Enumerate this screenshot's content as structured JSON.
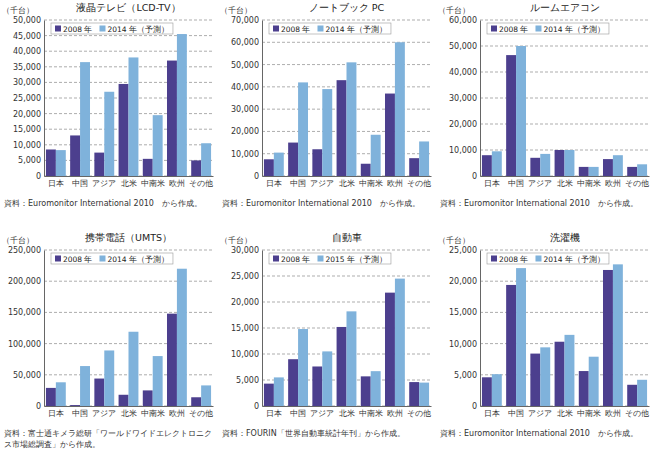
{
  "chart_data": [
    {
      "type": "bar",
      "title": "液晶テレビ（LCD-TV）",
      "ylabel": "（千台）",
      "annotation": [
        "資料：Euromonitor International 2010　から作成。"
      ],
      "categories": [
        "日本",
        "中国",
        "アジア",
        "北米",
        "中南米",
        "欧州",
        "その他"
      ],
      "series": [
        {
          "name": "2008 年",
          "color": "#4c3f8e",
          "values": [
            8500,
            13000,
            7500,
            29500,
            5500,
            37000,
            5000
          ]
        },
        {
          "name": "2014 年（予測）",
          "color": "#7fb2db",
          "values": [
            8300,
            36500,
            27000,
            38000,
            19500,
            45500,
            10500
          ]
        }
      ],
      "ylim": [
        0,
        50000
      ],
      "yticks": [
        0,
        {
          "value": 5000,
          "label": "5,000"
        },
        {
          "value": 10000,
          "label": "10,000"
        },
        {
          "value": 15000,
          "label": "15,000"
        },
        {
          "value": 20000,
          "label": "20,000"
        },
        {
          "value": 25000,
          "label": "25,000"
        },
        {
          "value": 30000,
          "label": "30,000"
        },
        {
          "value": 35000,
          "label": "35,000"
        },
        {
          "value": 40000,
          "label": "40,000"
        },
        {
          "value": 45000,
          "label": "45,000"
        },
        {
          "value": 50000,
          "label": "50,000"
        }
      ],
      "grid": true,
      "legend": "upper left"
    },
    {
      "type": "bar",
      "title": "ノートブック PC",
      "ylabel": "（千台）",
      "annotation": [
        "資料：Euromonitor International 2010　から作成。"
      ],
      "categories": [
        "日本",
        "中国",
        "アジア",
        "北米",
        "中南米",
        "欧州",
        "その他"
      ],
      "series": [
        {
          "name": "2008 年",
          "color": "#4c3f8e",
          "values": [
            7500,
            15000,
            12000,
            43000,
            5500,
            37000,
            8000
          ]
        },
        {
          "name": "2014 年（予測）",
          "color": "#7fb2db",
          "values": [
            10500,
            42000,
            39000,
            51000,
            18500,
            60000,
            15500
          ]
        }
      ],
      "ylim": [
        0,
        70000
      ],
      "yticks": [
        0,
        {
          "value": 10000,
          "label": "10,000"
        },
        {
          "value": 20000,
          "label": "20,000"
        },
        {
          "value": 30000,
          "label": "30,000"
        },
        {
          "value": 40000,
          "label": "40,000"
        },
        {
          "value": 50000,
          "label": "50,000"
        },
        {
          "value": 60000,
          "label": "60,000"
        },
        {
          "value": 70000,
          "label": "70,000"
        }
      ],
      "grid": true,
      "legend": "upper left"
    },
    {
      "type": "bar",
      "title": "ルームエアコン",
      "ylabel": "（千台）",
      "annotation": [
        "資料：Euromonitor International 2010　から作成。"
      ],
      "categories": [
        "日本",
        "中国",
        "アジア",
        "北米",
        "中南米",
        "欧州",
        "その他"
      ],
      "series": [
        {
          "name": "2008 年",
          "color": "#4c3f8e",
          "values": [
            8000,
            46500,
            7000,
            10000,
            3500,
            6500,
            3500
          ]
        },
        {
          "name": "2014 年（予測）",
          "color": "#7fb2db",
          "values": [
            9500,
            50000,
            8500,
            10000,
            3500,
            8000,
            4500
          ]
        }
      ],
      "ylim": [
        0,
        60000
      ],
      "yticks": [
        0,
        {
          "value": 10000,
          "label": "10,000"
        },
        {
          "value": 20000,
          "label": "20,000"
        },
        {
          "value": 30000,
          "label": "30,000"
        },
        {
          "value": 40000,
          "label": "40,000"
        },
        {
          "value": 50000,
          "label": "50,000"
        },
        {
          "value": 60000,
          "label": "60,000"
        }
      ],
      "grid": true,
      "legend": "upper left"
    },
    {
      "type": "bar",
      "title": "携帯電話（UMTS）",
      "ylabel": "（千台）",
      "annotation": [
        "資料：富士通キメラ総研「ワールドワイドエレクトロニク",
        "ス市場総調査」から作成。"
      ],
      "categories": [
        "日本",
        "中国",
        "アジア",
        "北米",
        "中南米",
        "欧州",
        "その他"
      ],
      "series": [
        {
          "name": "2008 年",
          "color": "#4c3f8e",
          "values": [
            29000,
            1500,
            44000,
            18000,
            25000,
            148000,
            14000
          ]
        },
        {
          "name": "2014 年（予測）",
          "color": "#7fb2db",
          "values": [
            38000,
            64000,
            89000,
            119000,
            80000,
            220000,
            33000
          ]
        }
      ],
      "ylim": [
        0,
        250000
      ],
      "yticks": [
        0,
        {
          "value": 50000,
          "label": "50,000"
        },
        {
          "value": 100000,
          "label": "100,000"
        },
        {
          "value": 150000,
          "label": "150,000"
        },
        {
          "value": 200000,
          "label": "200,000"
        },
        {
          "value": 250000,
          "label": "250,000"
        }
      ],
      "grid": true,
      "legend": "upper left"
    },
    {
      "type": "bar",
      "title": "自動車",
      "ylabel": "（千台）",
      "annotation": [
        "資料：FOURIN「世界自動車統計年刊」から作成。"
      ],
      "categories": [
        "日本",
        "中国",
        "アジア",
        "北米",
        "中南米",
        "欧州",
        "その他"
      ],
      "series": [
        {
          "name": "2008 年",
          "color": "#4c3f8e",
          "values": [
            4300,
            9000,
            7600,
            15200,
            5700,
            21800,
            4600
          ]
        },
        {
          "name": "2015 年（予測）",
          "color": "#7fb2db",
          "values": [
            5500,
            14800,
            10500,
            18200,
            6700,
            24500,
            4500
          ]
        }
      ],
      "ylim": [
        0,
        30000
      ],
      "yticks": [
        0,
        {
          "value": 5000,
          "label": "5,000"
        },
        {
          "value": 10000,
          "label": "10,000"
        },
        {
          "value": 15000,
          "label": "15,000"
        },
        {
          "value": 20000,
          "label": "20,000"
        },
        {
          "value": 25000,
          "label": "25,000"
        },
        {
          "value": 30000,
          "label": "30,000"
        }
      ],
      "grid": true,
      "legend": "upper left"
    },
    {
      "type": "bar",
      "title": "洗濯機",
      "ylabel": "（千台）",
      "annotation": [
        "資料：Euromonitor International 2010　から作成。"
      ],
      "categories": [
        "日本",
        "中国",
        "アジア",
        "北米",
        "中南米",
        "欧州",
        "その他"
      ],
      "series": [
        {
          "name": "2008 年",
          "color": "#4c3f8e",
          "values": [
            4600,
            19400,
            8400,
            10300,
            5600,
            21800,
            3400
          ]
        },
        {
          "name": "2014 年（予測）",
          "color": "#7fb2db",
          "values": [
            5100,
            22100,
            9400,
            11400,
            7900,
            22700,
            4200
          ]
        }
      ],
      "ylim": [
        0,
        25000
      ],
      "yticks": [
        0,
        {
          "value": 5000,
          "label": "5,000"
        },
        {
          "value": 10000,
          "label": "10,000"
        },
        {
          "value": 15000,
          "label": "15,000"
        },
        {
          "value": 20000,
          "label": "20,000"
        },
        {
          "value": 25000,
          "label": "25,000"
        }
      ],
      "grid": true,
      "legend": "upper left"
    }
  ]
}
